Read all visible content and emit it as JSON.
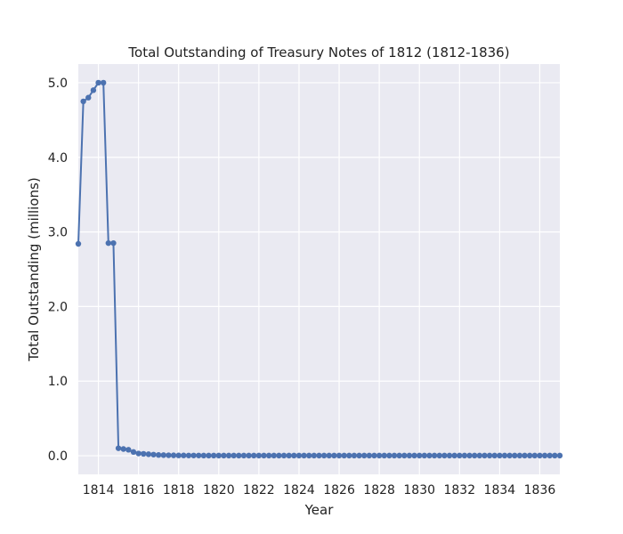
{
  "chart_data": {
    "type": "line",
    "title": "Total Outstanding of Treasury Notes of 1812 (1812-1836)",
    "xlabel": "Year",
    "ylabel": "Total Outstanding (millions)",
    "xlim": [
      1813.0,
      1837.0
    ],
    "ylim": [
      -0.25,
      5.25
    ],
    "xticks": [
      1814,
      1816,
      1818,
      1820,
      1822,
      1824,
      1826,
      1828,
      1830,
      1832,
      1834,
      1836
    ],
    "yticks": [
      0.0,
      1.0,
      2.0,
      3.0,
      4.0,
      5.0
    ],
    "ytick_labels": [
      "0.0",
      "1.0",
      "2.0",
      "3.0",
      "4.0",
      "5.0"
    ],
    "grid": true,
    "colors": {
      "line": "#4c72b0",
      "plot_background": "#eaeaf2",
      "grid": "#ffffff"
    },
    "series": [
      {
        "x": [
          1813.0,
          1813.25,
          1813.5,
          1813.75,
          1814.0,
          1814.25,
          1814.5,
          1814.75,
          1815.0,
          1815.25,
          1815.5,
          1815.75,
          1816.0,
          1816.25,
          1816.5,
          1816.75,
          1817.0,
          1817.25,
          1817.5,
          1817.75,
          1818.0,
          1818.25,
          1818.5,
          1818.75,
          1819.0,
          1819.25,
          1819.5,
          1819.75,
          1820.0,
          1820.25,
          1820.5,
          1820.75,
          1821.0,
          1821.25,
          1821.5,
          1821.75,
          1822.0,
          1822.25,
          1822.5,
          1822.75,
          1823.0,
          1823.25,
          1823.5,
          1823.75,
          1824.0,
          1824.25,
          1824.5,
          1824.75,
          1825.0,
          1825.25,
          1825.5,
          1825.75,
          1826.0,
          1826.25,
          1826.5,
          1826.75,
          1827.0,
          1827.25,
          1827.5,
          1827.75,
          1828.0,
          1828.25,
          1828.5,
          1828.75,
          1829.0,
          1829.25,
          1829.5,
          1829.75,
          1830.0,
          1830.25,
          1830.5,
          1830.75,
          1831.0,
          1831.25,
          1831.5,
          1831.75,
          1832.0,
          1832.25,
          1832.5,
          1832.75,
          1833.0,
          1833.25,
          1833.5,
          1833.75,
          1834.0,
          1834.25,
          1834.5,
          1834.75,
          1835.0,
          1835.25,
          1835.5,
          1835.75,
          1836.0,
          1836.25,
          1836.5,
          1836.75,
          1837.0
        ],
        "values": [
          2.84,
          4.75,
          4.8,
          4.9,
          5.0,
          5.0,
          2.85,
          2.85,
          0.1,
          0.09,
          0.08,
          0.05,
          0.03,
          0.025,
          0.02,
          0.015,
          0.01,
          0.008,
          0.006,
          0.005,
          0.004,
          0.004,
          0.003,
          0.003,
          0.003,
          0.002,
          0.002,
          0.002,
          0.002,
          0.002,
          0.002,
          0.002,
          0.002,
          0.002,
          0.002,
          0.002,
          0.002,
          0.002,
          0.002,
          0.002,
          0.002,
          0.002,
          0.002,
          0.002,
          0.002,
          0.002,
          0.002,
          0.002,
          0.002,
          0.002,
          0.002,
          0.002,
          0.002,
          0.002,
          0.002,
          0.002,
          0.002,
          0.002,
          0.002,
          0.002,
          0.002,
          0.002,
          0.002,
          0.002,
          0.002,
          0.002,
          0.002,
          0.002,
          0.002,
          0.002,
          0.002,
          0.002,
          0.002,
          0.002,
          0.002,
          0.002,
          0.002,
          0.002,
          0.002,
          0.002,
          0.002,
          0.002,
          0.002,
          0.002,
          0.002,
          0.002,
          0.002,
          0.002,
          0.002,
          0.002,
          0.002,
          0.002,
          0.002,
          0.002,
          0.002,
          0.002,
          0.002
        ]
      }
    ]
  }
}
